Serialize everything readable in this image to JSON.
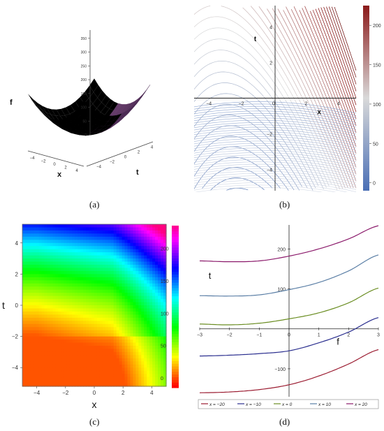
{
  "captions": {
    "a": "(a)",
    "b": "(b)",
    "c": "(c)",
    "d": "(d)"
  },
  "chart_data": [
    {
      "id": "a",
      "type": "surface",
      "axis_labels": {
        "x": "x",
        "t": "t",
        "f": "f"
      },
      "x_ticks": [
        "−4",
        "−2",
        "0",
        "2",
        "4"
      ],
      "t_ticks": [
        "−4",
        "−2",
        "0",
        "2",
        "4"
      ],
      "f_ticks": [
        "0",
        "50",
        "100",
        "150",
        "200",
        "250",
        "300",
        "350"
      ],
      "x_range": [
        -5,
        5
      ],
      "t_range": [
        -5,
        5
      ],
      "f_range": [
        0,
        380
      ]
    },
    {
      "id": "b",
      "type": "contour",
      "axis_labels": {
        "x": "x",
        "t": "t"
      },
      "x_ticks": [
        "−4",
        "−2",
        "0",
        "2",
        "4"
      ],
      "t_ticks": [
        "−4",
        "−2",
        "2",
        "4"
      ],
      "colorbar_ticks": [
        "200",
        "150",
        "100",
        "50",
        "0"
      ],
      "xlim": [
        -5,
        5
      ],
      "ylim": [
        -5.2,
        5.2
      ],
      "colorbar_range": [
        -10,
        225
      ],
      "colors": {
        "low": "#4a6fb5",
        "mid": "#d9d9d9",
        "high": "#8b1a1a"
      }
    },
    {
      "id": "c",
      "type": "heatmap",
      "axis_labels": {
        "x": "x",
        "t": "t"
      },
      "x_ticks": [
        "−4",
        "−2",
        "0",
        "2",
        "4"
      ],
      "t_ticks": [
        "4",
        "2",
        "0",
        "−2",
        "−4"
      ],
      "colorbar_ticks": [
        "200",
        "150",
        "100",
        "50",
        "0"
      ],
      "xlim": [
        -5,
        5
      ],
      "ylim": [
        -5.2,
        5.2
      ],
      "colorbar_range": [
        -15,
        235
      ],
      "colormap": "hsv-rainbow"
    },
    {
      "id": "d",
      "type": "line",
      "axis_labels": {
        "x": "f",
        "y": "t"
      },
      "x_ticks": [
        "−3",
        "−2",
        "−1",
        "0",
        "1",
        "2",
        "3"
      ],
      "y_ticks": [
        "200",
        "100",
        "−100"
      ],
      "xlim": [
        -3,
        3
      ],
      "ylim": [
        -170,
        260
      ],
      "x": [
        -3,
        -2,
        -1,
        0,
        1,
        2,
        3
      ],
      "series": [
        {
          "name": "x = −20",
          "color": "#9b1c31",
          "values": [
            -160,
            -158,
            -152,
            -140,
            -118,
            -88,
            -52
          ]
        },
        {
          "name": "x = −10",
          "color": "#2b2f8f",
          "values": [
            -68,
            -66,
            -62,
            -55,
            -35,
            -8,
            28
          ]
        },
        {
          "name": "x = 0",
          "color": "#6b8e23",
          "values": [
            12,
            10,
            14,
            25,
            40,
            65,
            102
          ]
        },
        {
          "name": "x = 10",
          "color": "#5b7fa6",
          "values": [
            83,
            82,
            85,
            98,
            116,
            145,
            185
          ]
        },
        {
          "name": "x = 20",
          "color": "#8b1a6b",
          "values": [
            170,
            168,
            170,
            182,
            200,
            225,
            258
          ]
        }
      ]
    }
  ]
}
